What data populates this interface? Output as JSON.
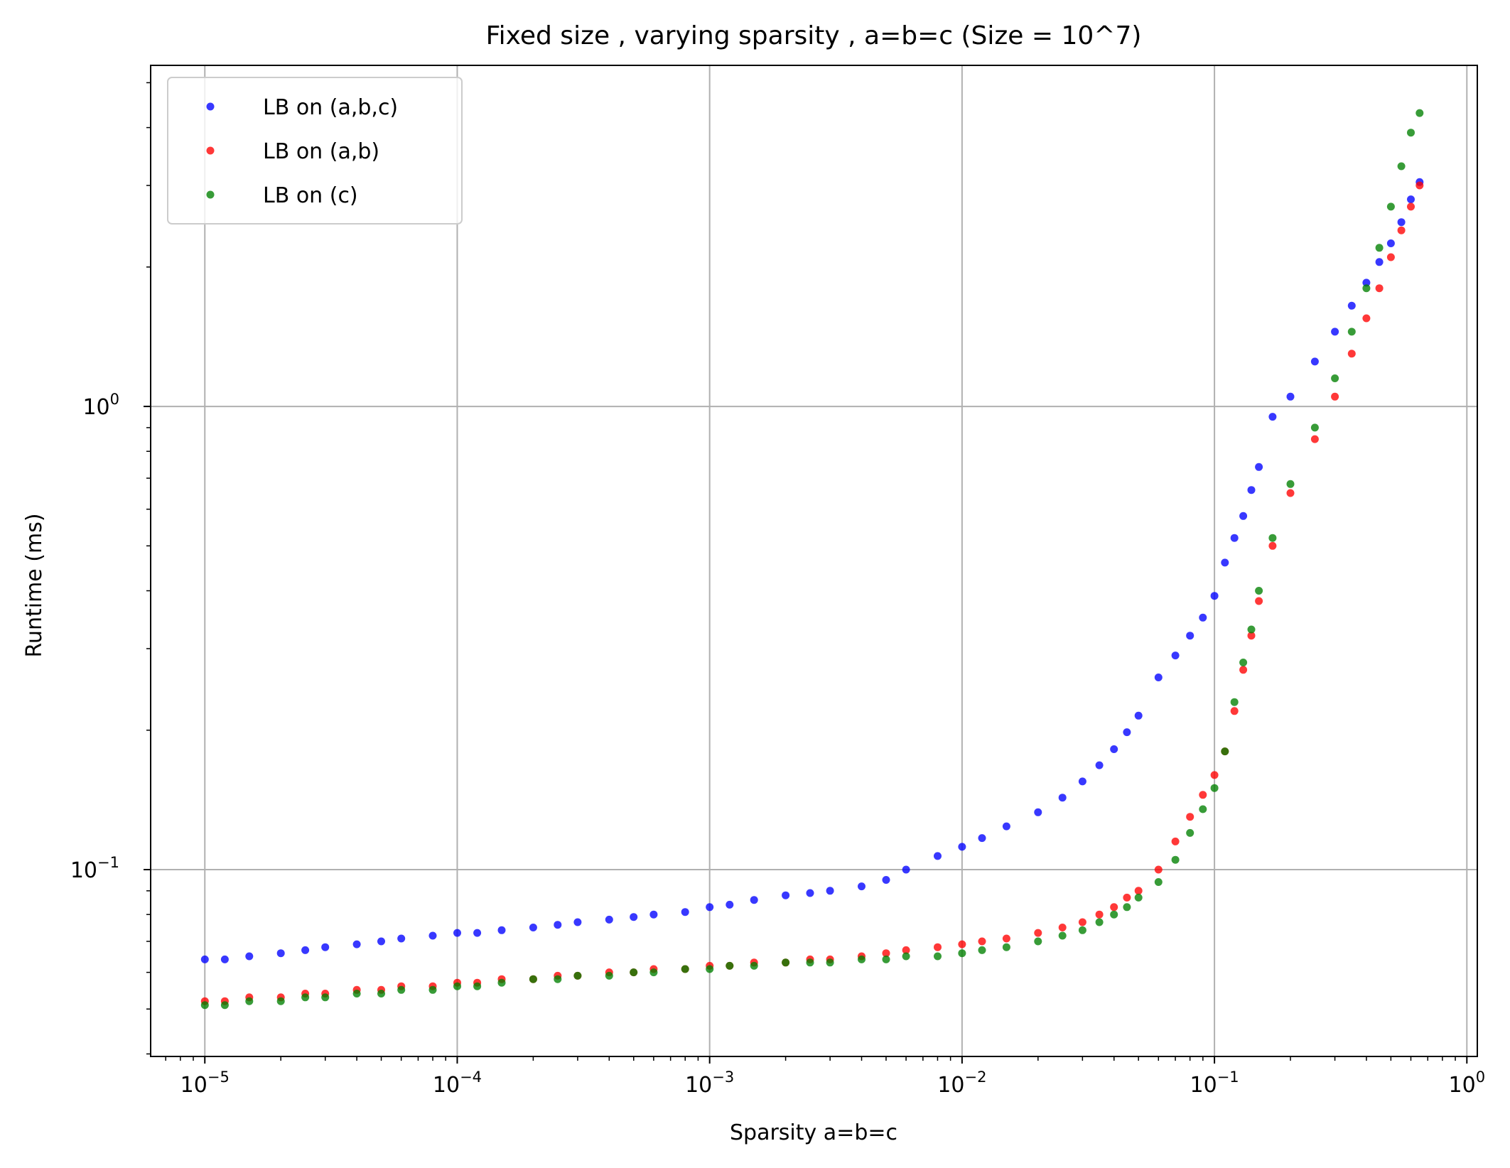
{
  "chart_data": {
    "type": "scatter",
    "title": "Fixed size , varying sparsity , a=b=c (Size = 10^7)",
    "xlabel": "Sparsity a=b=c",
    "ylabel": "Runtime (ms)",
    "xscale": "log",
    "yscale": "log",
    "xlim": [
      6.1e-06,
      1.1
    ],
    "ylim": [
      0.0395,
      5.45
    ],
    "grid": true,
    "legend_position": "top-left",
    "x_ticks": [
      {
        "value": 1e-05,
        "base": "10",
        "exp": "−5"
      },
      {
        "value": 0.0001,
        "base": "10",
        "exp": "−4"
      },
      {
        "value": 0.001,
        "base": "10",
        "exp": "−3"
      },
      {
        "value": 0.01,
        "base": "10",
        "exp": "−2"
      },
      {
        "value": 0.1,
        "base": "10",
        "exp": "−1"
      },
      {
        "value": 1,
        "base": "10",
        "exp": "0"
      }
    ],
    "y_ticks": [
      {
        "value": 0.1,
        "base": "10",
        "exp": "−1"
      },
      {
        "value": 1,
        "base": "10",
        "exp": "0"
      }
    ],
    "series": [
      {
        "name": "LB on (a,b,c)",
        "color": "#0000ff",
        "x": [
          1e-05,
          1.2e-05,
          1.5e-05,
          2e-05,
          2.5e-05,
          3e-05,
          4e-05,
          5e-05,
          6e-05,
          8e-05,
          0.0001,
          0.00012,
          0.00015,
          0.0002,
          0.00025,
          0.0003,
          0.0004,
          0.0005,
          0.0006,
          0.0008,
          0.001,
          0.0012,
          0.0015,
          0.002,
          0.0025,
          0.003,
          0.004,
          0.005,
          0.006,
          0.008,
          0.01,
          0.012,
          0.015,
          0.02,
          0.025,
          0.03,
          0.035,
          0.04,
          0.045,
          0.05,
          0.06,
          0.07,
          0.08,
          0.09,
          0.1,
          0.11,
          0.12,
          0.13,
          0.14,
          0.15,
          0.17,
          0.2,
          0.25,
          0.3,
          0.35,
          0.4,
          0.45,
          0.5,
          0.55,
          0.6,
          0.65
        ],
        "y": [
          0.064,
          0.064,
          0.065,
          0.066,
          0.067,
          0.068,
          0.069,
          0.07,
          0.071,
          0.072,
          0.073,
          0.073,
          0.074,
          0.075,
          0.076,
          0.077,
          0.078,
          0.079,
          0.08,
          0.081,
          0.083,
          0.084,
          0.086,
          0.088,
          0.089,
          0.09,
          0.092,
          0.095,
          0.1,
          0.107,
          0.112,
          0.117,
          0.124,
          0.133,
          0.143,
          0.155,
          0.168,
          0.182,
          0.198,
          0.215,
          0.26,
          0.29,
          0.32,
          0.35,
          0.39,
          0.46,
          0.52,
          0.58,
          0.66,
          0.74,
          0.95,
          1.05,
          1.25,
          1.45,
          1.65,
          1.85,
          2.05,
          2.25,
          2.5,
          2.8,
          3.05
        ]
      },
      {
        "name": "LB on (a,b)",
        "color": "#ff0000",
        "x": [
          1e-05,
          1.2e-05,
          1.5e-05,
          2e-05,
          2.5e-05,
          3e-05,
          4e-05,
          5e-05,
          6e-05,
          8e-05,
          0.0001,
          0.00012,
          0.00015,
          0.0002,
          0.00025,
          0.0003,
          0.0004,
          0.0005,
          0.0006,
          0.0008,
          0.001,
          0.0012,
          0.0015,
          0.002,
          0.0025,
          0.003,
          0.004,
          0.005,
          0.006,
          0.008,
          0.01,
          0.012,
          0.015,
          0.02,
          0.025,
          0.03,
          0.035,
          0.04,
          0.045,
          0.05,
          0.06,
          0.07,
          0.08,
          0.09,
          0.1,
          0.11,
          0.12,
          0.13,
          0.14,
          0.15,
          0.17,
          0.2,
          0.25,
          0.3,
          0.35,
          0.4,
          0.45,
          0.5,
          0.55,
          0.6,
          0.65
        ],
        "y": [
          0.052,
          0.052,
          0.053,
          0.053,
          0.054,
          0.054,
          0.055,
          0.055,
          0.056,
          0.056,
          0.057,
          0.057,
          0.058,
          0.058,
          0.059,
          0.059,
          0.06,
          0.06,
          0.061,
          0.061,
          0.062,
          0.062,
          0.063,
          0.063,
          0.064,
          0.064,
          0.065,
          0.066,
          0.067,
          0.068,
          0.069,
          0.07,
          0.071,
          0.073,
          0.075,
          0.077,
          0.08,
          0.083,
          0.087,
          0.09,
          0.1,
          0.115,
          0.13,
          0.145,
          0.16,
          0.18,
          0.22,
          0.27,
          0.32,
          0.38,
          0.5,
          0.65,
          0.85,
          1.05,
          1.3,
          1.55,
          1.8,
          2.1,
          2.4,
          2.7,
          3.0
        ]
      },
      {
        "name": "LB on (c)",
        "color": "#008000",
        "x": [
          1e-05,
          1.2e-05,
          1.5e-05,
          2e-05,
          2.5e-05,
          3e-05,
          4e-05,
          5e-05,
          6e-05,
          8e-05,
          0.0001,
          0.00012,
          0.00015,
          0.0002,
          0.00025,
          0.0003,
          0.0004,
          0.0005,
          0.0006,
          0.0008,
          0.001,
          0.0012,
          0.0015,
          0.002,
          0.0025,
          0.003,
          0.004,
          0.005,
          0.006,
          0.008,
          0.01,
          0.012,
          0.015,
          0.02,
          0.025,
          0.03,
          0.035,
          0.04,
          0.045,
          0.05,
          0.06,
          0.07,
          0.08,
          0.09,
          0.1,
          0.11,
          0.12,
          0.13,
          0.14,
          0.15,
          0.17,
          0.2,
          0.25,
          0.3,
          0.35,
          0.4,
          0.45,
          0.5,
          0.55,
          0.6,
          0.65
        ],
        "y": [
          0.051,
          0.051,
          0.052,
          0.052,
          0.053,
          0.053,
          0.054,
          0.054,
          0.055,
          0.055,
          0.056,
          0.056,
          0.057,
          0.058,
          0.058,
          0.059,
          0.059,
          0.06,
          0.06,
          0.061,
          0.061,
          0.062,
          0.062,
          0.063,
          0.063,
          0.063,
          0.064,
          0.064,
          0.065,
          0.065,
          0.066,
          0.067,
          0.068,
          0.07,
          0.072,
          0.074,
          0.077,
          0.08,
          0.083,
          0.087,
          0.094,
          0.105,
          0.12,
          0.135,
          0.15,
          0.18,
          0.23,
          0.28,
          0.33,
          0.4,
          0.52,
          0.68,
          0.9,
          1.15,
          1.45,
          1.8,
          2.2,
          2.7,
          3.3,
          3.9,
          4.3
        ]
      }
    ]
  }
}
